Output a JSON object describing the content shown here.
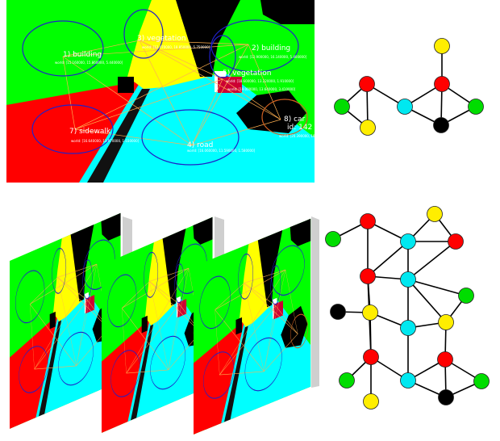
{
  "colors": {
    "vegetation": "#ffff00",
    "building": "#00ff00",
    "road": "#00ffff",
    "sidewalk": "#ff0000",
    "car": "#000000",
    "sky": "#000000",
    "ellipse_stroke": "#2020c8",
    "edge_stroke": "#ffb050",
    "car_ellipse_stroke": "#d06020"
  },
  "top_scene": {
    "labels": [
      {
        "text": "3) vegetation"
      },
      {
        "text": "2) building"
      },
      {
        "text": "1) building"
      },
      {
        "text": "7) sidewalk"
      },
      {
        "text": "4) road"
      },
      {
        "text": "5) vegetation"
      },
      {
        "text": "8) car"
      },
      {
        "text": "id: 142"
      }
    ],
    "coords": [
      {
        "text": "world: [15.160000, 15.860000, 5.440000]"
      },
      {
        "text": "world: [12.470000, 18.850000, 5.750000]"
      },
      {
        "text": "world: [12.900000, 16.140000, 5.400000]"
      },
      {
        "text": "world: [18.600000, 13.220000, 1.910000]"
      },
      {
        "text": "world: [16.640000, 13.970000, 1.030000]"
      },
      {
        "text": "world: [19.000000, 13.640000, 3.410000]"
      },
      {
        "text": "world: [16.060000, 11.590000, 1.580000]"
      },
      {
        "text": "world: [20.390000, 18.050000, 0.960000]"
      }
    ]
  },
  "top_graph": {
    "nodes": [
      {
        "id": "a",
        "color": "green"
      },
      {
        "id": "b",
        "color": "red"
      },
      {
        "id": "c",
        "color": "yellow"
      },
      {
        "id": "d",
        "color": "cyan"
      },
      {
        "id": "e",
        "color": "yellow"
      },
      {
        "id": "f",
        "color": "red"
      },
      {
        "id": "g",
        "color": "green"
      },
      {
        "id": "h",
        "color": "black"
      }
    ],
    "edges": [
      [
        "a",
        "b"
      ],
      [
        "a",
        "c"
      ],
      [
        "b",
        "c"
      ],
      [
        "b",
        "d"
      ],
      [
        "d",
        "f"
      ],
      [
        "d",
        "h"
      ],
      [
        "e",
        "f"
      ],
      [
        "f",
        "g"
      ],
      [
        "f",
        "h"
      ],
      [
        "g",
        "h"
      ]
    ]
  },
  "bottom_graph": {
    "nodes": [
      {
        "id": "n1",
        "color": "green"
      },
      {
        "id": "n2",
        "color": "red"
      },
      {
        "id": "n3",
        "color": "yellow"
      },
      {
        "id": "n4",
        "color": "cyan"
      },
      {
        "id": "n5",
        "color": "red"
      },
      {
        "id": "n6",
        "color": "red"
      },
      {
        "id": "n7",
        "color": "cyan"
      },
      {
        "id": "n8",
        "color": "green"
      },
      {
        "id": "n9",
        "color": "black"
      },
      {
        "id": "n10",
        "color": "yellow"
      },
      {
        "id": "n11",
        "color": "cyan"
      },
      {
        "id": "n12",
        "color": "yellow"
      },
      {
        "id": "n13",
        "color": "red"
      },
      {
        "id": "n14",
        "color": "red"
      },
      {
        "id": "n15",
        "color": "green"
      },
      {
        "id": "n16",
        "color": "cyan"
      },
      {
        "id": "n17",
        "color": "yellow"
      },
      {
        "id": "n18",
        "color": "green"
      },
      {
        "id": "n19",
        "color": "black"
      }
    ],
    "edges": [
      [
        "n1",
        "n2"
      ],
      [
        "n2",
        "n4"
      ],
      [
        "n3",
        "n4"
      ],
      [
        "n3",
        "n5"
      ],
      [
        "n4",
        "n5"
      ],
      [
        "n4",
        "n6"
      ],
      [
        "n4",
        "n7"
      ],
      [
        "n2",
        "n6"
      ],
      [
        "n5",
        "n7"
      ],
      [
        "n6",
        "n7"
      ],
      [
        "n6",
        "n10"
      ],
      [
        "n9",
        "n10"
      ],
      [
        "n6",
        "n13"
      ],
      [
        "n7",
        "n11"
      ],
      [
        "n7",
        "n12"
      ],
      [
        "n7",
        "n8"
      ],
      [
        "n10",
        "n11"
      ],
      [
        "n11",
        "n12"
      ],
      [
        "n10",
        "n13"
      ],
      [
        "n11",
        "n16"
      ],
      [
        "n12",
        "n14"
      ],
      [
        "n8",
        "n12"
      ],
      [
        "n13",
        "n15"
      ],
      [
        "n13",
        "n17"
      ],
      [
        "n13",
        "n16"
      ],
      [
        "n14",
        "n16"
      ],
      [
        "n14",
        "n18"
      ],
      [
        "n14",
        "n19"
      ],
      [
        "n16",
        "n19"
      ],
      [
        "n18",
        "n19"
      ]
    ]
  }
}
